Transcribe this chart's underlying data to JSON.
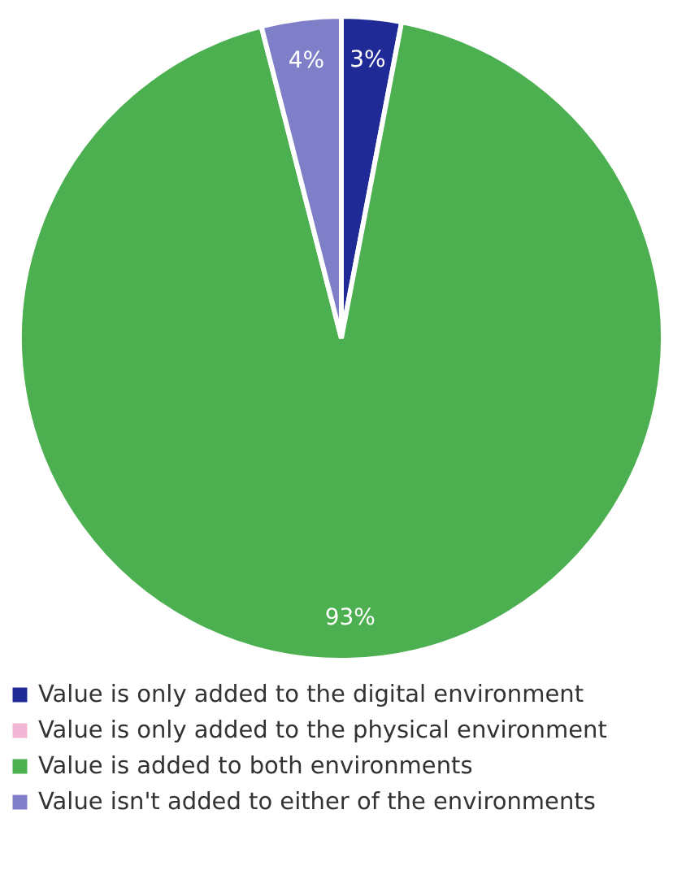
{
  "chart_data": {
    "type": "pie",
    "categories": [
      "Value is only added to the digital environment",
      "Value is only added to the physical environment",
      "Value is added to both environments",
      "Value isn't added to either of the environments"
    ],
    "values": [
      3,
      0,
      93,
      4
    ],
    "colors": [
      "#1f2a96",
      "#f2b5d4",
      "#4caf50",
      "#7f7fc9"
    ],
    "value_labels": [
      "3%",
      null,
      "93%",
      "4%"
    ],
    "legend": "bottom"
  }
}
